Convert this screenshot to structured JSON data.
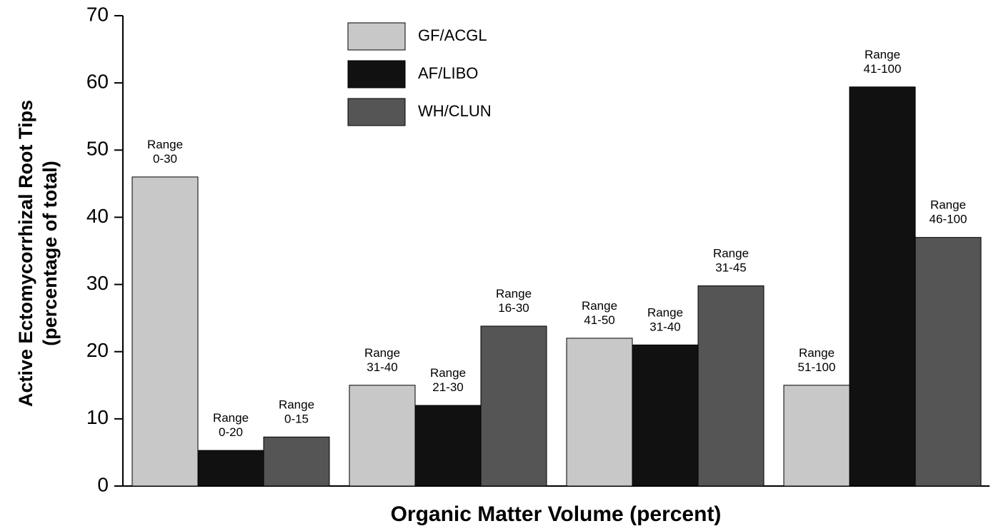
{
  "chart_data": {
    "type": "bar",
    "y_label": [
      "Active Ectomycorrhizal Root Tips",
      "(percentage of total)"
    ],
    "x_label": "Organic Matter Volume (percent)",
    "categories": [
      null,
      null,
      null,
      null
    ],
    "series": [
      {
        "name": "GF/ACGL",
        "color": "#c8c8c8",
        "values": [
          46,
          15,
          22,
          15
        ],
        "annotations": [
          "Range 0-30",
          "Range 31-40",
          "Range 41-50",
          "Range 51-100"
        ]
      },
      {
        "name": "AF/LIBO",
        "color": "#111111",
        "values": [
          5.3,
          12,
          21,
          59.4
        ],
        "annotations": [
          "Range 0-20",
          "Range 21-30",
          "Range 31-40",
          "Range 41-100"
        ]
      },
      {
        "name": "WH/CLUN",
        "color": "#555555",
        "values": [
          7.3,
          23.8,
          29.8,
          37
        ],
        "annotations": [
          "Range 0-15",
          "Range 16-30",
          "Range 31-45",
          "Range 46-100"
        ]
      }
    ],
    "ylim": [
      0,
      70
    ],
    "yticks": [
      0,
      10,
      20,
      30,
      40,
      50,
      60,
      70
    ],
    "grid": false,
    "legend": "top"
  }
}
